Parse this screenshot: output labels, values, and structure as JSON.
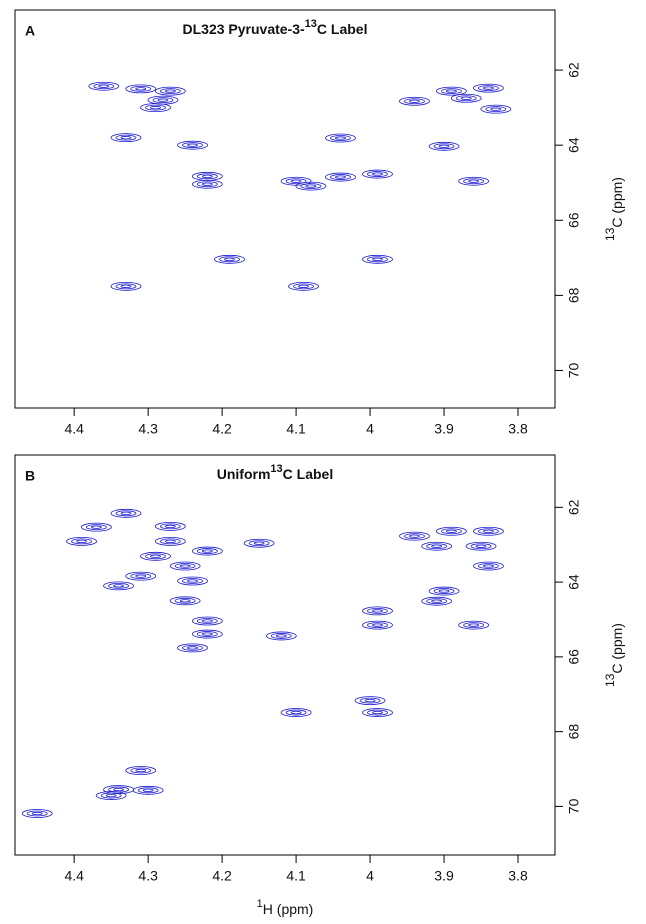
{
  "chart_data": [
    {
      "type": "scatter",
      "panel_label": "A",
      "title": [
        "DL323 Pyruvate-3-",
        "13",
        "C Label"
      ],
      "y_label": [
        "13",
        "C (ppm)"
      ],
      "color": "#1a1ad0",
      "xlim": [
        4.48,
        3.75
      ],
      "ylim": [
        60.4,
        71.0
      ],
      "xticks": [
        4.4,
        4.3,
        4.2,
        4.1,
        4.0,
        3.9,
        3.8
      ],
      "yticks": [
        62,
        64,
        66,
        68,
        70
      ],
      "x": [
        4.36,
        4.31,
        4.27,
        4.28,
        4.29,
        4.33,
        4.24,
        4.22,
        4.22,
        4.19,
        4.33,
        4.1,
        4.08,
        4.09,
        4.04,
        4.04,
        3.99,
        3.99,
        3.94,
        3.89,
        3.84,
        3.87,
        3.9,
        3.86,
        3.83
      ],
      "values": [
        62.43,
        62.5,
        62.56,
        62.8,
        63.0,
        63.8,
        64.0,
        64.83,
        65.04,
        67.04,
        67.76,
        64.96,
        65.09,
        67.76,
        63.81,
        64.85,
        64.77,
        67.04,
        62.83,
        62.56,
        62.48,
        62.75,
        64.03,
        64.96,
        63.04
      ]
    },
    {
      "type": "scatter",
      "panel_label": "B",
      "title": [
        "Uniform",
        "13",
        "C Label"
      ],
      "y_label": [
        "13",
        "C (ppm)"
      ],
      "x_label": [
        "1",
        "H (ppm)"
      ],
      "color": "#1a1ad0",
      "xlim": [
        4.48,
        3.75
      ],
      "ylim": [
        60.6,
        71.3
      ],
      "xticks": [
        4.4,
        4.3,
        4.2,
        4.1,
        4.0,
        3.9,
        3.8
      ],
      "yticks": [
        62,
        64,
        66,
        68,
        70
      ],
      "x": [
        4.37,
        4.39,
        4.33,
        4.27,
        4.27,
        4.29,
        4.25,
        4.31,
        4.34,
        4.24,
        4.22,
        4.25,
        4.22,
        4.22,
        4.24,
        4.15,
        4.12,
        4.1,
        4.0,
        3.99,
        3.99,
        3.99,
        3.94,
        3.91,
        3.89,
        3.84,
        3.85,
        3.84,
        3.9,
        3.91,
        3.86,
        4.34,
        4.3,
        4.31,
        4.35,
        4.45
      ],
      "values": [
        62.53,
        62.91,
        62.16,
        62.51,
        62.91,
        63.31,
        63.57,
        63.84,
        64.1,
        63.97,
        63.17,
        64.5,
        65.04,
        65.39,
        65.76,
        62.96,
        65.44,
        67.49,
        67.17,
        67.49,
        64.77,
        65.15,
        62.77,
        63.04,
        62.64,
        62.64,
        63.04,
        63.57,
        64.24,
        64.51,
        65.15,
        69.55,
        69.57,
        69.04,
        69.71,
        70.19
      ]
    }
  ]
}
